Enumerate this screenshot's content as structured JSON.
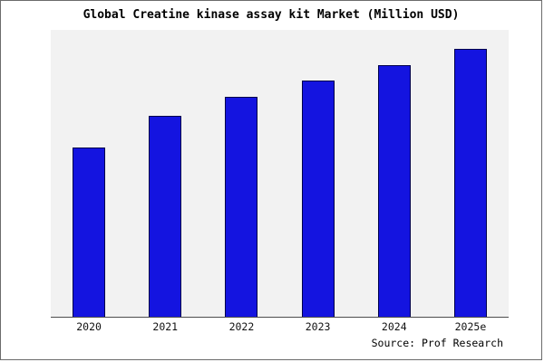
{
  "title": "Global Creatine kinase assay kit Market (Million USD)",
  "source": "Source: Prof Research",
  "chart_data": {
    "type": "bar",
    "title": "Global Creatine kinase assay kit Market (Million USD)",
    "categories": [
      "2020",
      "2021",
      "2022",
      "2023",
      "2024",
      "2025e"
    ],
    "values": [
      63,
      75,
      82,
      88,
      94,
      100
    ],
    "value_note": "relative scale; no y-axis tick labels shown in chart",
    "xlabel": "",
    "ylabel": "",
    "ylim": [
      0,
      107
    ],
    "grid": false,
    "legend": false,
    "bar_color": "#1414e0",
    "bar_border_color": "#00004a",
    "plot_background": "#f2f2f2",
    "source_label": "Source: Prof Research"
  }
}
